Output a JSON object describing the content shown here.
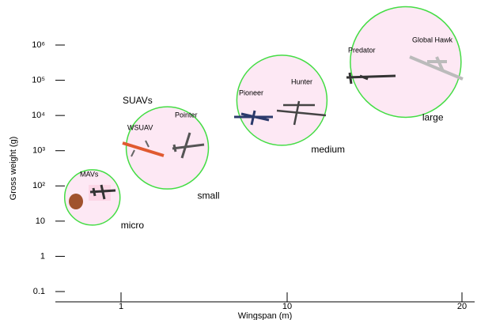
{
  "chart_data": {
    "type": "bubble",
    "x_label": "Wingspan (m)",
    "y_label": "Gross weight (g)",
    "log_x": true,
    "log_y": true,
    "xlim": [
      0.4,
      21
    ],
    "xticks": [
      1,
      10,
      20
    ],
    "ylim": [
      0.1,
      1000000
    ],
    "yticks": [
      0.1,
      1,
      10,
      {
        "value": 100,
        "label": "10²"
      },
      {
        "value": 1000,
        "label": "10³"
      },
      {
        "value": 10000,
        "label": "10⁴"
      },
      {
        "value": 100000,
        "label": "10⁵"
      },
      {
        "value": 1000000,
        "label": "10⁶"
      }
    ],
    "circle_fill": "#fde8f4",
    "circle_stroke": "#44dd44",
    "groups": [
      {
        "name": "micro",
        "x": 0.67,
        "y": 47
      },
      {
        "name": "small",
        "x": 1.9,
        "y": 1200
      },
      {
        "name": "medium",
        "x": 9.3,
        "y": 27000
      },
      {
        "name": "large",
        "x": 16,
        "y": 330000
      }
    ],
    "annotations": [
      "SUAVs",
      "MAVs",
      "WSUAV",
      "Pointer",
      "Pioneer",
      "Hunter",
      "Predator",
      "Global Hawk"
    ]
  }
}
